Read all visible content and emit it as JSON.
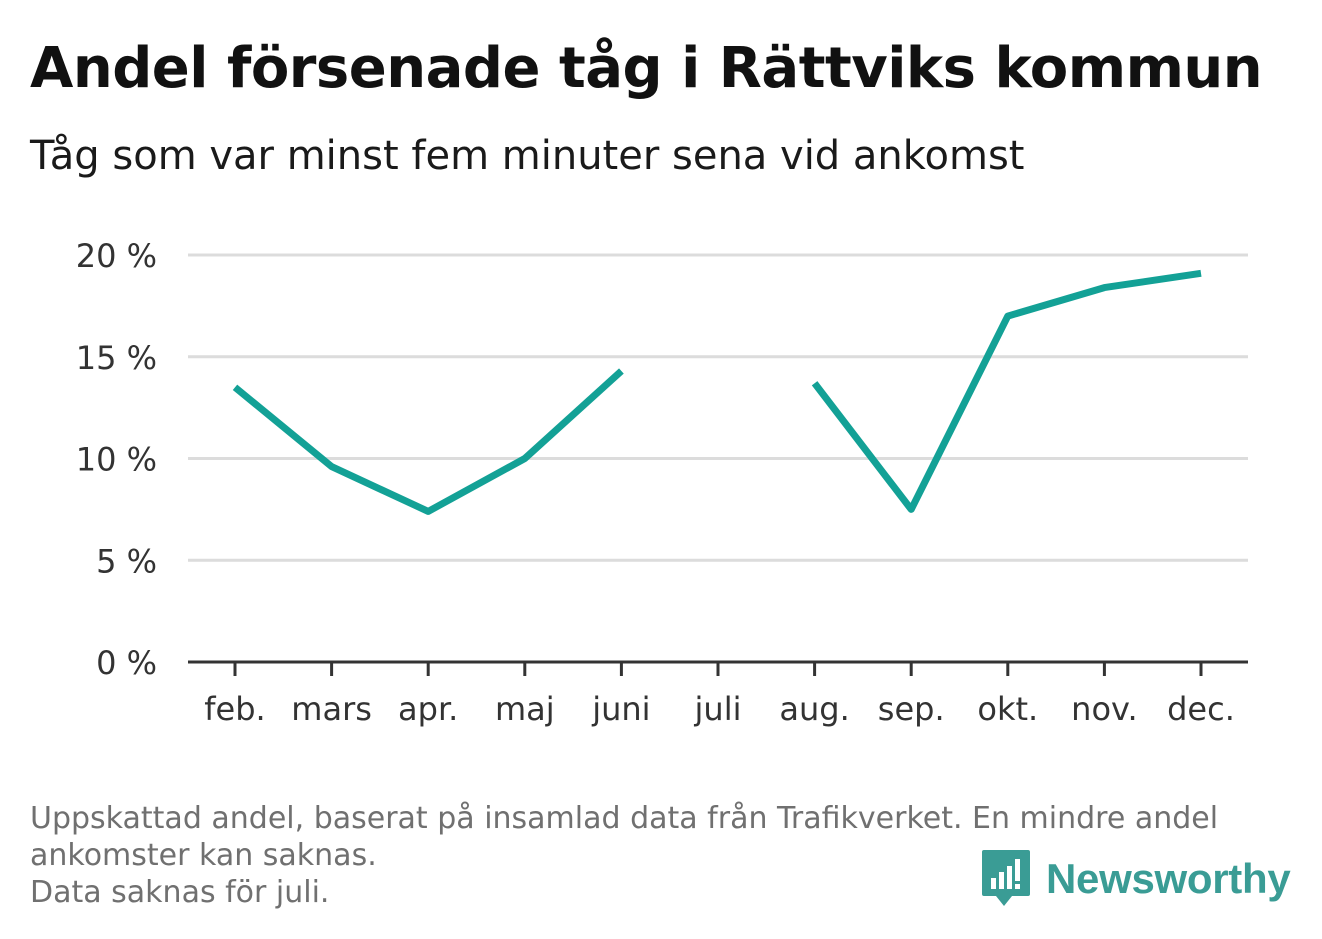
{
  "title": "Andel försenade tåg i Rättviks kommun",
  "subtitle": "Tåg som var minst fem minuter sena vid ankomst",
  "footnote": {
    "line1": "Uppskattad andel, baserat på insamlad data från Trafikverket. En mindre andel",
    "line2": "ankomster kan saknas.",
    "line3": "Data saknas för juli."
  },
  "brand": {
    "name": "Newsworthy",
    "color": "#3a9c95",
    "icon": "newsworthy-logo-icon"
  },
  "chart_data": {
    "type": "line",
    "categories": [
      "feb.",
      "mars",
      "apr.",
      "maj",
      "juni",
      "juli",
      "aug.",
      "sep.",
      "okt.",
      "nov.",
      "dec."
    ],
    "series": [
      {
        "values": [
          13.5,
          9.6,
          7.4,
          10.0,
          14.3,
          null,
          13.7,
          7.5,
          17.0,
          18.4,
          19.1
        ]
      }
    ],
    "yticks": [
      "0 %",
      "5 %",
      "10 %",
      "15 %",
      "20 %"
    ],
    "ylim": [
      0,
      20
    ],
    "ylabel": "",
    "xlabel": "",
    "grid": true,
    "legend": "none",
    "colors": {
      "line": "#13a196",
      "grid": "#dcdcdc",
      "axis": "#333333",
      "tick_text": "#333333"
    }
  }
}
